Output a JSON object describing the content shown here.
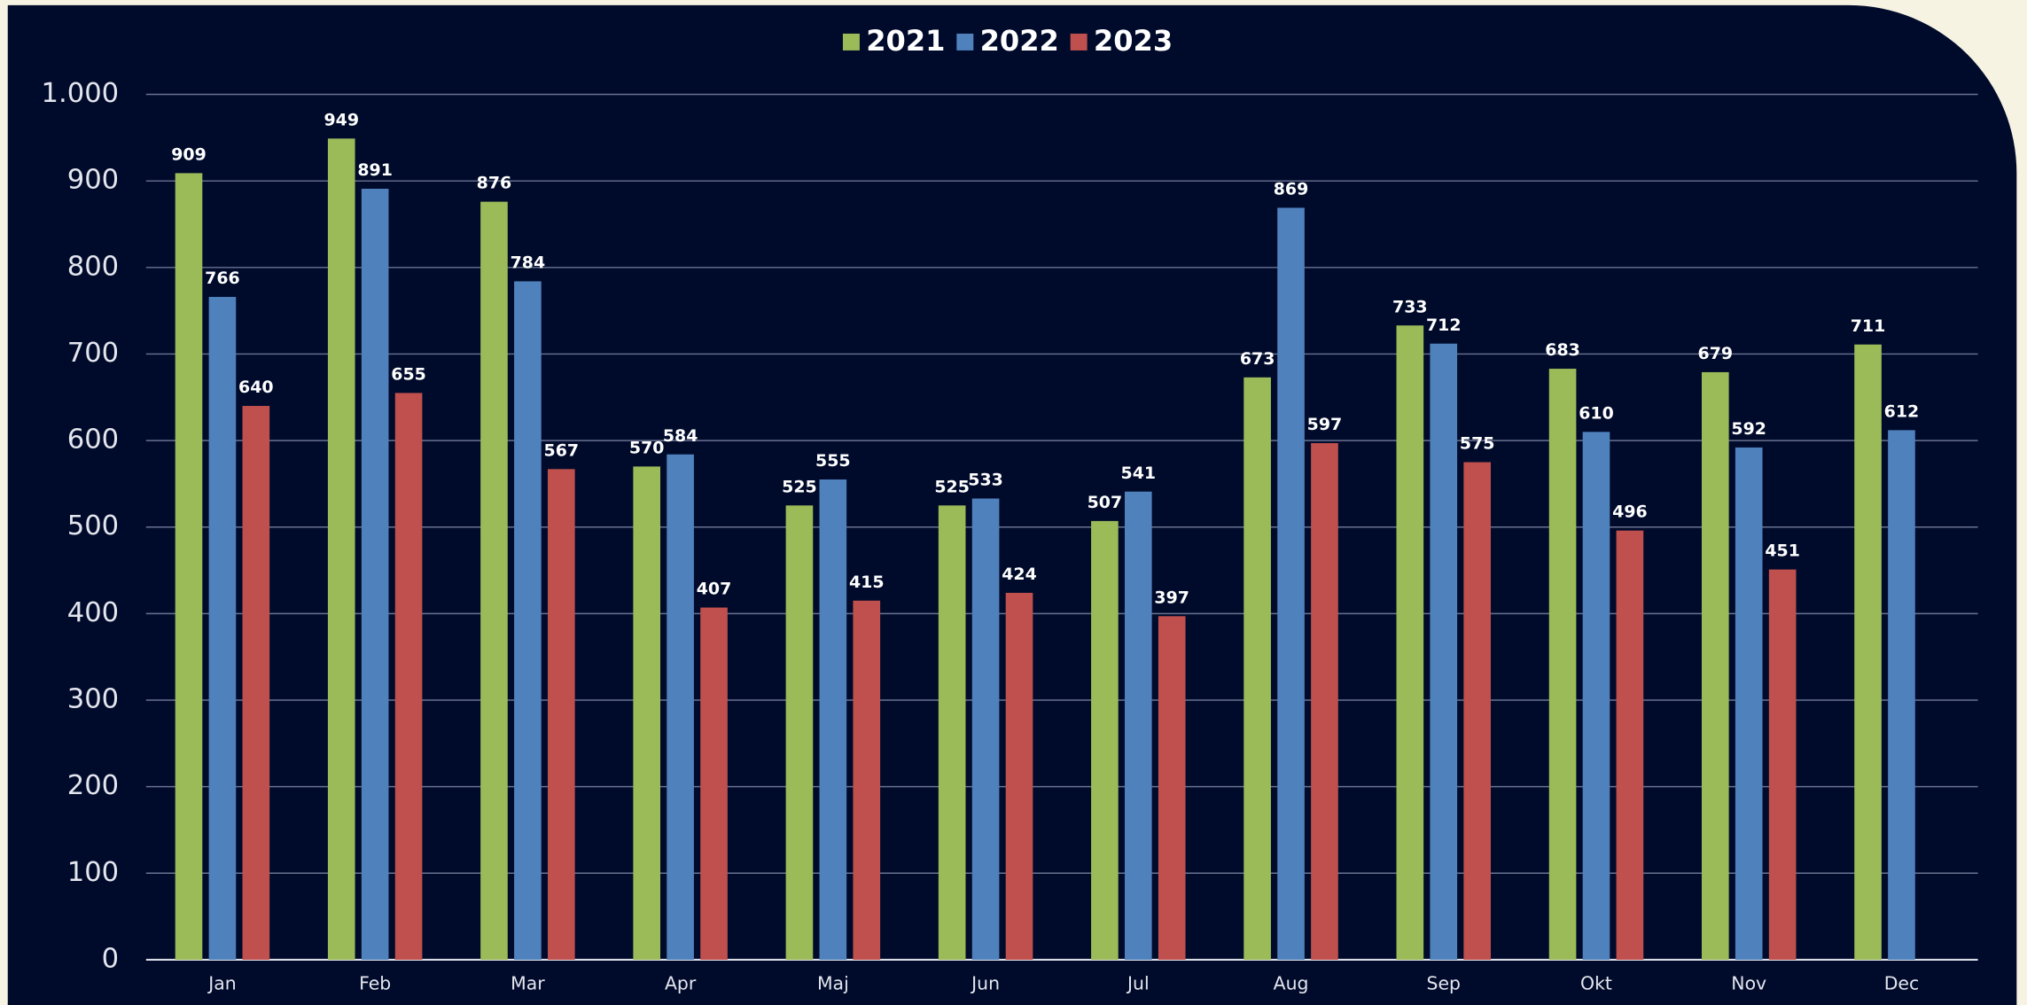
{
  "chart_data": {
    "type": "bar",
    "categories": [
      "Jan",
      "Feb",
      "Mar",
      "Apr",
      "Maj",
      "Jun",
      "Jul",
      "Aug",
      "Sep",
      "Okt",
      "Nov",
      "Dec"
    ],
    "series": [
      {
        "name": "2021",
        "color": "#9bbb59",
        "values": [
          909,
          949,
          876,
          570,
          525,
          525,
          507,
          673,
          733,
          683,
          679,
          711
        ]
      },
      {
        "name": "2022",
        "color": "#4f81bd",
        "values": [
          766,
          891,
          784,
          584,
          555,
          533,
          541,
          869,
          712,
          610,
          592,
          612
        ]
      },
      {
        "name": "2023",
        "color": "#c0504d",
        "values": [
          640,
          655,
          567,
          407,
          415,
          424,
          397,
          597,
          575,
          496,
          451,
          null
        ]
      }
    ],
    "ylim": [
      0,
      1000
    ],
    "yticks": [
      0,
      100,
      200,
      300,
      400,
      500,
      600,
      700,
      800,
      900,
      {
        "value": 1000,
        "label": "1.000"
      }
    ],
    "grid": true,
    "legend": "top"
  }
}
